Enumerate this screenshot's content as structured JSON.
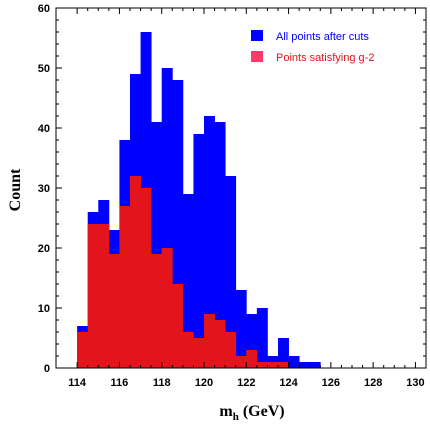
{
  "chart_data": {
    "type": "bar",
    "subtype": "overlaid-histogram",
    "title": "",
    "xlabel": "m",
    "xlabel_sub": "h",
    "xlabel_unit": " (GeV)",
    "ylabel": "Count",
    "xlim": [
      113,
      130.5
    ],
    "ylim": [
      0,
      60
    ],
    "grid": false,
    "legend_position": "top-right",
    "x_ticks": [
      114,
      116,
      118,
      120,
      122,
      124,
      126,
      128,
      130
    ],
    "y_ticks": [
      0,
      10,
      20,
      30,
      40,
      50,
      60
    ],
    "bin_width": 0.5,
    "bin_starts": [
      114,
      114.5,
      115,
      115.5,
      116,
      116.5,
      117,
      117.5,
      118,
      118.5,
      119,
      119.5,
      120,
      120.5,
      121,
      121.5,
      122,
      122.5,
      123,
      123.5,
      124,
      124.5,
      125,
      125.5
    ],
    "series": [
      {
        "name": "All points after cuts",
        "color": "#0000ff",
        "values": [
          7,
          26,
          28,
          23,
          38,
          49,
          56,
          41,
          50,
          48,
          29,
          39,
          42,
          41,
          32,
          13,
          9,
          10,
          2,
          5,
          2,
          1,
          1,
          0
        ]
      },
      {
        "name": "Points satisfying g-2",
        "color": "#e4141c",
        "values": [
          6,
          24,
          24,
          19,
          27,
          32,
          30,
          19,
          20,
          14,
          6,
          5,
          9,
          8,
          6,
          2,
          3,
          1,
          1,
          1,
          0,
          0,
          0,
          0
        ]
      }
    ]
  }
}
